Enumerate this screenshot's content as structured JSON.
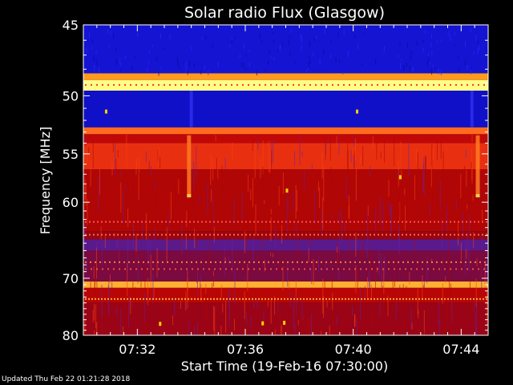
{
  "chart_data": {
    "type": "heatmap",
    "title": "Solar radio Flux (Glasgow)",
    "xlabel": "Start Time (19-Feb-16 07:30:00)",
    "ylabel": "Frequency [MHz]",
    "x_range_minutes": [
      0,
      15
    ],
    "x_ticks": [
      {
        "minute": 2,
        "label": "07:32"
      },
      {
        "minute": 6,
        "label": "07:36"
      },
      {
        "minute": 10,
        "label": "07:40"
      },
      {
        "minute": 14,
        "label": "07:44"
      }
    ],
    "y_range_mhz": [
      45,
      80
    ],
    "y_ticks": [
      {
        "mhz": 45,
        "label": "45"
      },
      {
        "mhz": 50,
        "label": "50"
      },
      {
        "mhz": 55,
        "label": "55"
      },
      {
        "mhz": 60,
        "label": "60"
      },
      {
        "mhz": 70,
        "label": "70"
      },
      {
        "mhz": 80,
        "label": "80"
      }
    ],
    "y_scale": "reciprocal",
    "bands": [
      {
        "from_mhz": 45.0,
        "to_mhz": 48.3,
        "color": "#1414d2"
      },
      {
        "from_mhz": 48.3,
        "to_mhz": 48.8,
        "color": "#ff9a20"
      },
      {
        "from_mhz": 48.8,
        "to_mhz": 49.6,
        "color": "#ffff88"
      },
      {
        "from_mhz": 49.6,
        "to_mhz": 52.6,
        "color": "#1010c8"
      },
      {
        "from_mhz": 52.6,
        "to_mhz": 53.2,
        "color": "#ff6a20"
      },
      {
        "from_mhz": 53.2,
        "to_mhz": 54.0,
        "color": "#c00808"
      },
      {
        "from_mhz": 54.0,
        "to_mhz": 56.5,
        "color": "#e83010"
      },
      {
        "from_mhz": 56.5,
        "to_mhz": 63.5,
        "color": "#b00606"
      },
      {
        "from_mhz": 63.5,
        "to_mhz": 64.5,
        "color": "#9a0510"
      },
      {
        "from_mhz": 64.5,
        "to_mhz": 66.0,
        "color": "#5a1a8c"
      },
      {
        "from_mhz": 66.0,
        "to_mhz": 70.5,
        "color": "#7a0a40"
      },
      {
        "from_mhz": 70.5,
        "to_mhz": 71.5,
        "color": "#ffb030"
      },
      {
        "from_mhz": 71.5,
        "to_mhz": 74.0,
        "color": "#b80606"
      },
      {
        "from_mhz": 74.0,
        "to_mhz": 80.0,
        "color": "#9a0416"
      }
    ],
    "colormap": [
      "#1414d2",
      "#6a20a0",
      "#b00606",
      "#ff4010",
      "#ffd040",
      "#ffffa0"
    ]
  },
  "footer": {
    "updated": "Updated Thu Feb 22 01:21:28 2018"
  }
}
